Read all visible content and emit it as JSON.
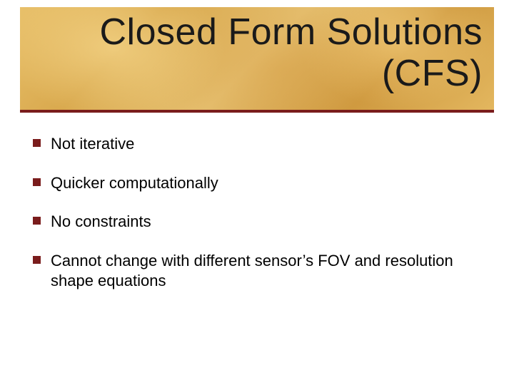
{
  "slide": {
    "title_line1": "Closed Form Solutions",
    "title_line2": "(CFS)",
    "title_fontsize": 52,
    "title_color": "#1a1a1a",
    "header_underline_color": "#7a1c1c",
    "header_bg_primary": "#e3b75f",
    "header_bg_secondary": "#cf9a40",
    "background_color": "#ffffff"
  },
  "bullets": {
    "marker_color": "#7a1c1c",
    "marker_size": 11,
    "text_fontsize": 22,
    "text_color": "#000000",
    "items": [
      {
        "text": "Not iterative"
      },
      {
        "text": "Quicker computationally"
      },
      {
        "text": "No constraints"
      },
      {
        "text": "Cannot change with different sensor’s FOV and resolution shape equations"
      }
    ]
  }
}
